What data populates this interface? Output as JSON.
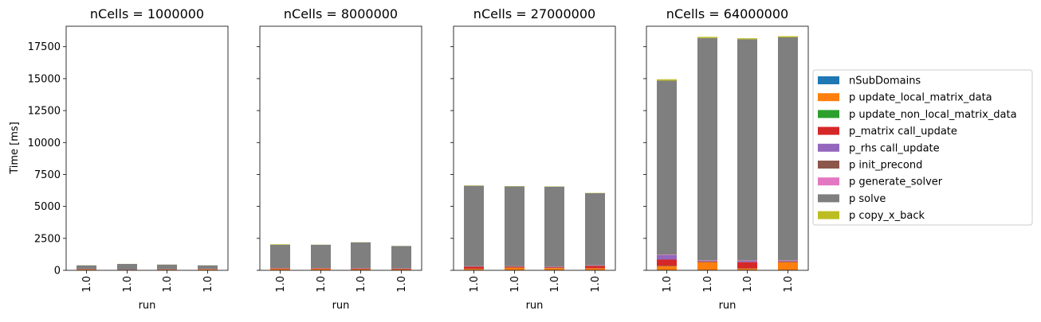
{
  "chart_data": {
    "type": "bar",
    "stacked": true,
    "ylabel": "Time [ms]",
    "xlabel": "run",
    "categories": [
      "1.0",
      "1.0",
      "1.0",
      "1.0"
    ],
    "ylim": [
      0,
      19100
    ],
    "yticks": [
      0,
      2500,
      5000,
      7500,
      10000,
      12500,
      15000,
      17500
    ],
    "ytick_labels": [
      "0",
      "2500",
      "5000",
      "7500",
      "10000",
      "12500",
      "15000",
      "17500"
    ],
    "grid": false,
    "legend_position": "right",
    "colors": {
      "nSubDomains": "#1f77b4",
      "p update_local_matrix_data": "#ff7f0e",
      "p update_non_local_matrix_data": "#2ca02c",
      "p_matrix call_update": "#d62728",
      "p_rhs call_update": "#9467bd",
      "p init_precond": "#8c564b",
      "p generate_solver": "#e377c2",
      "p solve": "#7f7f7f",
      "p copy_x_back": "#bcbd22"
    },
    "series_names": [
      "nSubDomains",
      "p update_local_matrix_data",
      "p update_non_local_matrix_data",
      "p_matrix call_update",
      "p_rhs call_update",
      "p init_precond",
      "p generate_solver",
      "p solve",
      "p copy_x_back"
    ],
    "panels": [
      {
        "title": "nCells = 1000000",
        "series": [
          {
            "name": "nSubDomains",
            "values": [
              5,
              5,
              5,
              5
            ]
          },
          {
            "name": "p update_local_matrix_data",
            "values": [
              60,
              30,
              50,
              70
            ]
          },
          {
            "name": "p update_non_local_matrix_data",
            "values": [
              2,
              2,
              2,
              2
            ]
          },
          {
            "name": "p_matrix call_update",
            "values": [
              20,
              10,
              20,
              20
            ]
          },
          {
            "name": "p_rhs call_update",
            "values": [
              5,
              5,
              5,
              5
            ]
          },
          {
            "name": "p init_precond",
            "values": [
              5,
              5,
              5,
              5
            ]
          },
          {
            "name": "p generate_solver",
            "values": [
              2,
              2,
              2,
              2
            ]
          },
          {
            "name": "p solve",
            "values": [
              290,
              440,
              360,
              280
            ]
          },
          {
            "name": "p copy_x_back",
            "values": [
              5,
              5,
              5,
              5
            ]
          }
        ]
      },
      {
        "title": "nCells = 8000000",
        "series": [
          {
            "name": "nSubDomains",
            "values": [
              5,
              5,
              5,
              5
            ]
          },
          {
            "name": "p update_local_matrix_data",
            "values": [
              90,
              90,
              70,
              60
            ]
          },
          {
            "name": "p update_non_local_matrix_data",
            "values": [
              5,
              5,
              5,
              5
            ]
          },
          {
            "name": "p_matrix call_update",
            "values": [
              50,
              50,
              60,
              50
            ]
          },
          {
            "name": "p_rhs call_update",
            "values": [
              10,
              10,
              10,
              10
            ]
          },
          {
            "name": "p init_precond",
            "values": [
              5,
              5,
              5,
              5
            ]
          },
          {
            "name": "p generate_solver",
            "values": [
              5,
              5,
              5,
              5
            ]
          },
          {
            "name": "p solve",
            "values": [
              1830,
              1830,
              2030,
              1760
            ]
          },
          {
            "name": "p copy_x_back",
            "values": [
              40,
              10,
              10,
              10
            ]
          }
        ]
      },
      {
        "title": "nCells = 27000000",
        "series": [
          {
            "name": "nSubDomains",
            "values": [
              10,
              10,
              10,
              10
            ]
          },
          {
            "name": "p update_local_matrix_data",
            "values": [
              100,
              190,
              160,
              140
            ]
          },
          {
            "name": "p update_non_local_matrix_data",
            "values": [
              10,
              10,
              10,
              10
            ]
          },
          {
            "name": "p_matrix call_update",
            "values": [
              160,
              70,
              60,
              190
            ]
          },
          {
            "name": "p_rhs call_update",
            "values": [
              20,
              20,
              20,
              20
            ]
          },
          {
            "name": "p init_precond",
            "values": [
              10,
              10,
              10,
              10
            ]
          },
          {
            "name": "p generate_solver",
            "values": [
              10,
              10,
              10,
              10
            ]
          },
          {
            "name": "p solve",
            "values": [
              6300,
              6250,
              6270,
              5650
            ]
          },
          {
            "name": "p copy_x_back",
            "values": [
              20,
              20,
              20,
              20
            ]
          }
        ]
      },
      {
        "title": "nCells = 64000000",
        "series": [
          {
            "name": "nSubDomains",
            "values": [
              20,
              20,
              20,
              20
            ]
          },
          {
            "name": "p update_local_matrix_data",
            "values": [
              300,
              600,
              100,
              600
            ]
          },
          {
            "name": "p update_non_local_matrix_data",
            "values": [
              20,
              20,
              20,
              20
            ]
          },
          {
            "name": "p_matrix call_update",
            "values": [
              500,
              50,
              500,
              50
            ]
          },
          {
            "name": "p_rhs call_update",
            "values": [
              360,
              50,
              100,
              50
            ]
          },
          {
            "name": "p init_precond",
            "values": [
              20,
              20,
              20,
              20
            ]
          },
          {
            "name": "p generate_solver",
            "values": [
              20,
              20,
              20,
              20
            ]
          },
          {
            "name": "p solve",
            "values": [
              13600,
              17400,
              17300,
              17450
            ]
          },
          {
            "name": "p copy_x_back",
            "values": [
              110,
              90,
              80,
              90
            ]
          }
        ]
      }
    ]
  }
}
